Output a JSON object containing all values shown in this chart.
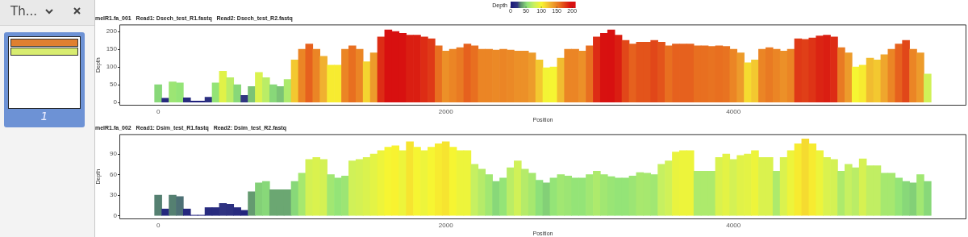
{
  "chart_data": [
    {
      "type": "other",
      "annotations": [
        "Th...",
        "1"
      ]
    },
    {
      "type": "bar",
      "title": "melR1.fa_001   Read1: Dsech_test_R1.fastq   Read2: Dsech_test_R2.fastq",
      "xlabel": "Position",
      "ylabel": "Depth",
      "clabel": "Depth",
      "clim": [
        0,
        210
      ],
      "cticks": [
        0,
        50,
        100,
        150,
        200
      ],
      "x": [
        0,
        50,
        100,
        150,
        200,
        250,
        300,
        350,
        400,
        450,
        500,
        550,
        600,
        650,
        700,
        750,
        800,
        850,
        900,
        950,
        1000,
        1050,
        1100,
        1150,
        1200,
        1250,
        1300,
        1350,
        1400,
        1450,
        1500,
        1550,
        1600,
        1650,
        1700,
        1750,
        1800,
        1850,
        1900,
        1950,
        2000,
        2050,
        2100,
        2150,
        2200,
        2250,
        2300,
        2350,
        2400,
        2450,
        2500,
        2550,
        2600,
        2650,
        2700,
        2750,
        2800,
        2850,
        2900,
        2950,
        3000,
        3050,
        3100,
        3150,
        3200,
        3250,
        3300,
        3350,
        3400,
        3450,
        3500,
        3550,
        3600,
        3650,
        3700,
        3750,
        3800,
        3850,
        3900,
        3950,
        4000,
        4050,
        4100,
        4150,
        4200,
        4250,
        4300,
        4350,
        4400,
        4450,
        4500,
        4550,
        4600,
        4650,
        4700,
        4750,
        4800,
        4850,
        4900,
        4950,
        5000,
        5050,
        5100,
        5150,
        5200,
        5250,
        5300,
        5350
      ],
      "values": [
        50,
        12,
        58,
        55,
        13,
        4,
        4,
        15,
        55,
        88,
        70,
        50,
        20,
        45,
        85,
        70,
        50,
        45,
        65,
        120,
        150,
        165,
        150,
        130,
        105,
        105,
        150,
        160,
        150,
        115,
        140,
        185,
        205,
        200,
        195,
        190,
        190,
        185,
        180,
        160,
        145,
        150,
        155,
        165,
        160,
        150,
        150,
        148,
        150,
        148,
        145,
        145,
        140,
        120,
        98,
        100,
        125,
        150,
        150,
        145,
        160,
        185,
        195,
        205,
        190,
        175,
        165,
        170,
        170,
        175,
        170,
        160,
        165,
        165,
        165,
        160,
        160,
        158,
        160,
        158,
        150,
        140,
        112,
        120,
        150,
        155,
        150,
        145,
        150,
        180,
        178,
        182,
        188,
        190,
        185,
        155,
        140,
        100,
        105,
        125,
        120,
        135,
        150,
        165,
        175,
        150,
        140,
        80
      ],
      "xlim": [
        -270,
        5620
      ],
      "xticks": [
        0,
        2000,
        4000
      ],
      "ylim": [
        -9,
        220
      ],
      "yticks": [
        0,
        50,
        100,
        150,
        200
      ]
    },
    {
      "type": "bar",
      "title": "melR1.fa_002   Read1: Dsim_test_R1.fastq   Read2: Dsim_test_R2.fastq",
      "xlabel": "Position",
      "ylabel": "Depth",
      "x": [
        0,
        50,
        100,
        150,
        200,
        250,
        300,
        350,
        400,
        450,
        500,
        550,
        600,
        650,
        700,
        750,
        800,
        850,
        900,
        950,
        1000,
        1050,
        1100,
        1150,
        1200,
        1250,
        1300,
        1350,
        1400,
        1450,
        1500,
        1550,
        1600,
        1650,
        1700,
        1750,
        1800,
        1850,
        1900,
        1950,
        2000,
        2050,
        2100,
        2150,
        2200,
        2250,
        2300,
        2350,
        2400,
        2450,
        2500,
        2550,
        2600,
        2650,
        2700,
        2750,
        2800,
        2850,
        2900,
        2950,
        3000,
        3050,
        3100,
        3150,
        3200,
        3250,
        3300,
        3350,
        3400,
        3450,
        3500,
        3550,
        3600,
        3650,
        3700,
        3750,
        3800,
        3850,
        3900,
        3950,
        4000,
        4050,
        4100,
        4150,
        4200,
        4250,
        4300,
        4350,
        4400,
        4450,
        4500,
        4550,
        4600,
        4650,
        4700,
        4750,
        4800,
        4850,
        4900,
        4950,
        5000,
        5050,
        5100,
        5150,
        5200,
        5250,
        5300,
        5350
      ],
      "values": [
        30,
        10,
        30,
        28,
        10,
        1,
        1,
        12,
        12,
        18,
        17,
        12,
        8,
        35,
        48,
        50,
        38,
        38,
        38,
        50,
        62,
        82,
        85,
        82,
        60,
        55,
        58,
        80,
        82,
        85,
        90,
        95,
        100,
        102,
        95,
        108,
        100,
        95,
        100,
        105,
        108,
        100,
        95,
        95,
        75,
        68,
        60,
        50,
        55,
        70,
        80,
        68,
        62,
        52,
        48,
        55,
        60,
        58,
        55,
        55,
        60,
        65,
        60,
        57,
        55,
        55,
        58,
        63,
        62,
        60,
        75,
        80,
        93,
        95,
        95,
        65,
        65,
        65,
        85,
        90,
        82,
        88,
        90,
        95,
        85,
        85,
        65,
        85,
        95,
        105,
        112,
        105,
        95,
        85,
        82,
        65,
        75,
        70,
        83,
        73,
        73,
        62,
        62,
        55,
        50,
        48,
        60,
        50
      ],
      "xlim": [
        -270,
        5620
      ],
      "xticks": [
        0,
        2000,
        4000
      ],
      "ylim": [
        -5,
        119
      ],
      "yticks": [
        0,
        30,
        60,
        90
      ]
    }
  ]
}
